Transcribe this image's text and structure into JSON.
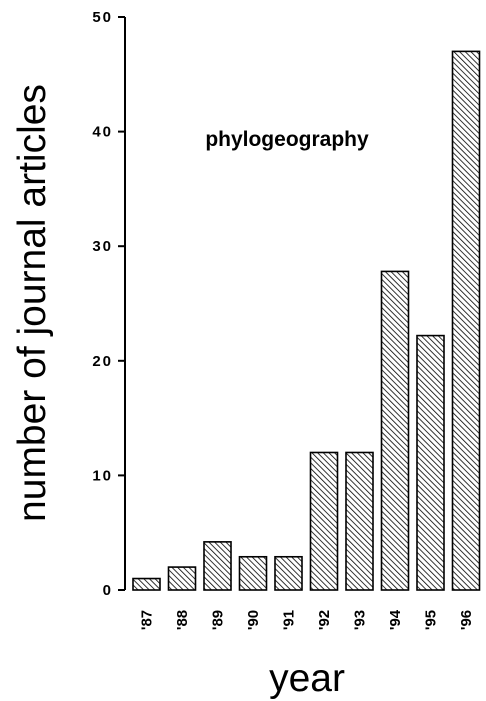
{
  "chart_data": {
    "type": "bar",
    "title": "phylogeography",
    "xlabel": "year",
    "ylabel": "number of journal articles",
    "categories": [
      "'87",
      "'88",
      "'89",
      "'90",
      "'91",
      "'92",
      "'93",
      "'94",
      "'95",
      "'96"
    ],
    "values": [
      1,
      2,
      4.2,
      2.9,
      2.9,
      12,
      12,
      27.8,
      22.2,
      47
    ],
    "ylim": [
      0,
      50
    ],
    "yticks": [
      "0",
      "10",
      "20",
      "30",
      "40",
      "50"
    ],
    "grid": false,
    "legend": "none",
    "bar_fill": "diagonal-hatch",
    "bar_color": "#000000"
  }
}
